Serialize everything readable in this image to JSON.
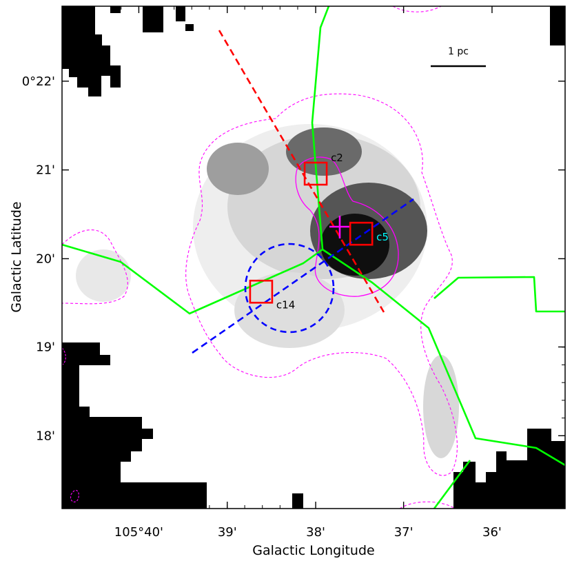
{
  "chart_data": {
    "type": "image",
    "xlabel": "Galactic Longitude",
    "ylabel": "Galactic Latitude",
    "x_ticks": [
      {
        "value": 105.6667,
        "label": "105°40'"
      },
      {
        "value": 105.65,
        "label": "39'"
      },
      {
        "value": 105.6333,
        "label": "38'"
      },
      {
        "value": 105.6167,
        "label": "37'"
      },
      {
        "value": 105.6,
        "label": "36'"
      }
    ],
    "y_ticks": [
      {
        "value": 0.3667,
        "label": "0°22'"
      },
      {
        "value": 0.35,
        "label": "21'"
      },
      {
        "value": 0.3333,
        "label": "20'"
      },
      {
        "value": 0.3167,
        "label": "19'"
      },
      {
        "value": 0.3,
        "label": "18'"
      }
    ],
    "xlim": [
      105.6812,
      105.5862
    ],
    "ylim": [
      0.2863,
      0.3808
    ],
    "scale_bar": {
      "label": "1 pc"
    },
    "sources": [
      {
        "name": "c2",
        "l": 105.6333,
        "b": 0.3493,
        "label_color": "#000000"
      },
      {
        "name": "c5",
        "l": 105.6247,
        "b": 0.338,
        "label_color": "#00ffff"
      },
      {
        "name": "c14",
        "l": 105.6436,
        "b": 0.3271,
        "label_color": "#000000"
      }
    ],
    "colors": {
      "filaments": "#00ff00",
      "contours": "#ff00ff",
      "markers": "#ff0000",
      "red_line": "#ff0000",
      "blue_line": "#0000ff",
      "circle": "#0000ff",
      "background_mask": "#000000"
    }
  }
}
